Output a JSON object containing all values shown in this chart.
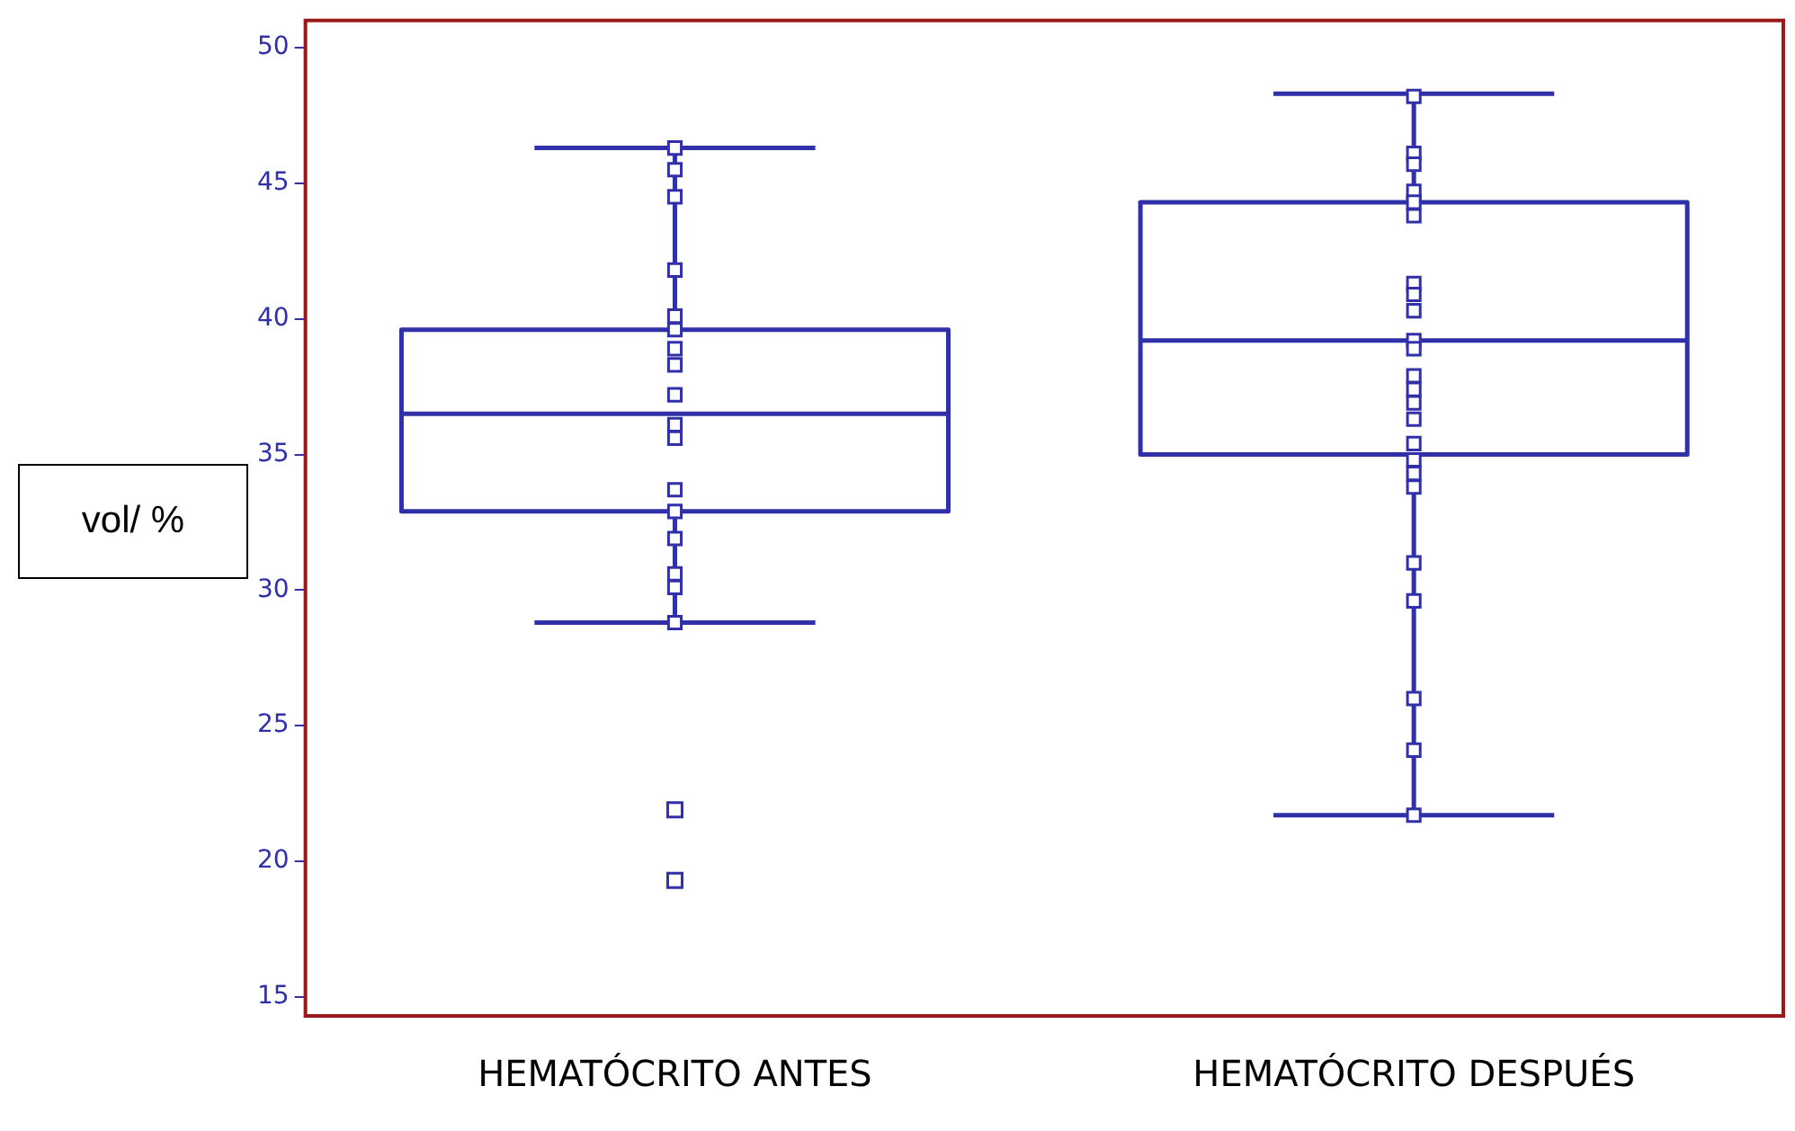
{
  "chart_data": {
    "type": "box",
    "ylabel": "vol/ %",
    "categories": [
      "HEMATÓCRITO ANTES",
      "HEMATÓCRITO DESPUÉS"
    ],
    "color": "#3030a8",
    "boxes": [
      {
        "low": 28.8,
        "q1": 32.9,
        "median": 36.5,
        "q3": 39.6,
        "high": 46.3,
        "outliers": [
          21.9,
          19.3
        ]
      },
      {
        "low": 21.7,
        "q1": 35.0,
        "median": 39.2,
        "q3": 44.3,
        "high": 48.3
      }
    ],
    "ylim": [
      14.3,
      51
    ],
    "yticks": [
      15,
      20,
      25,
      30,
      35,
      40,
      45,
      50
    ],
    "marker": "square",
    "series": [
      {
        "type": "scatter",
        "color": "#3030a8",
        "x": [
          "HEMATÓCRITO ANTES",
          "HEMATÓCRITO ANTES",
          "HEMATÓCRITO ANTES",
          "HEMATÓCRITO ANTES",
          "HEMATÓCRITO ANTES",
          "HEMATÓCRITO ANTES",
          "HEMATÓCRITO ANTES",
          "HEMATÓCRITO ANTES",
          "HEMATÓCRITO ANTES",
          "HEMATÓCRITO ANTES",
          "HEMATÓCRITO ANTES",
          "HEMATÓCRITO ANTES",
          "HEMATÓCRITO ANTES",
          "HEMATÓCRITO ANTES",
          "HEMATÓCRITO ANTES",
          "HEMATÓCRITO ANTES",
          "HEMATÓCRITO ANTES"
        ],
        "values": [
          46.3,
          45.5,
          44.5,
          41.8,
          40.1,
          39.6,
          38.9,
          38.3,
          37.2,
          36.1,
          35.6,
          33.7,
          32.9,
          31.9,
          30.6,
          30.1,
          28.8
        ]
      },
      {
        "type": "scatter",
        "color": "#3030a8",
        "x": [
          "HEMATÓCRITO DESPUÉS",
          "HEMATÓCRITO DESPUÉS",
          "HEMATÓCRITO DESPUÉS",
          "HEMATÓCRITO DESPUÉS",
          "HEMATÓCRITO DESPUÉS",
          "HEMATÓCRITO DESPUÉS",
          "HEMATÓCRITO DESPUÉS",
          "HEMATÓCRITO DESPUÉS",
          "HEMATÓCRITO DESPUÉS",
          "HEMATÓCRITO DESPUÉS",
          "HEMATÓCRITO DESPUÉS",
          "HEMATÓCRITO DESPUÉS",
          "HEMATÓCRITO DESPUÉS",
          "HEMATÓCRITO DESPUÉS",
          "HEMATÓCRITO DESPUÉS",
          "HEMATÓCRITO DESPUÉS",
          "HEMATÓCRITO DESPUÉS",
          "HEMATÓCRITO DESPUÉS",
          "HEMATÓCRITO DESPUÉS",
          "HEMATÓCRITO DESPUÉS",
          "HEMATÓCRITO DESPUÉS",
          "HEMATÓCRITO DESPUÉS",
          "HEMATÓCRITO DESPUÉS",
          "HEMATÓCRITO DESPUÉS"
        ],
        "values": [
          48.2,
          46.1,
          45.7,
          44.7,
          44.3,
          43.8,
          41.3,
          40.9,
          40.3,
          39.2,
          38.9,
          37.9,
          37.4,
          36.9,
          36.3,
          35.4,
          34.8,
          34.3,
          33.8,
          31.0,
          29.6,
          26.0,
          24.1,
          21.7
        ]
      }
    ]
  }
}
